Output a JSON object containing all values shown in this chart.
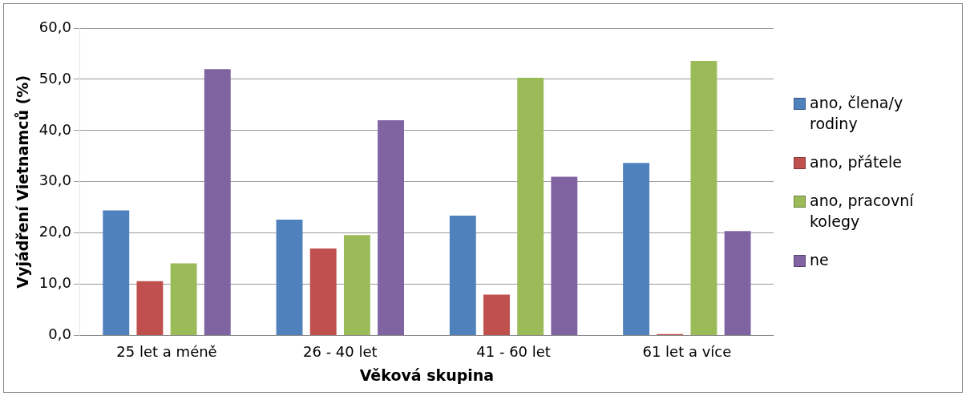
{
  "chart_data": {
    "type": "bar",
    "xlabel": "Věková skupina",
    "ylabel": "Vyjádření Vietnamců (%)",
    "categories": [
      "25 let a méně",
      "26 - 40 let",
      "41 - 60 let",
      "61 let a více"
    ],
    "series": [
      {
        "name": "ano, člena/y rodiny",
        "color": "#4f81bd",
        "values": [
          24.4,
          22.6,
          23.4,
          33.7
        ]
      },
      {
        "name": "ano, přátele",
        "color": "#c0504d",
        "values": [
          10.6,
          17.0,
          8.0,
          0.3
        ]
      },
      {
        "name": "ano, pracovní kolegy",
        "color": "#9bbb59",
        "values": [
          14.1,
          19.6,
          50.3,
          53.6
        ]
      },
      {
        "name": "ne",
        "color": "#8064a2",
        "values": [
          52.0,
          42.0,
          31.0,
          20.4
        ]
      }
    ],
    "ylim": [
      0,
      60
    ],
    "yticks": [
      {
        "value": 0,
        "label": "0,0"
      },
      {
        "value": 10,
        "label": "10,0"
      },
      {
        "value": 20,
        "label": "20,0"
      },
      {
        "value": 30,
        "label": "30,0"
      },
      {
        "value": 40,
        "label": "40,0"
      },
      {
        "value": 50,
        "label": "50,0"
      },
      {
        "value": 60,
        "label": "60,0"
      }
    ],
    "grid": "y",
    "legend": "right"
  }
}
